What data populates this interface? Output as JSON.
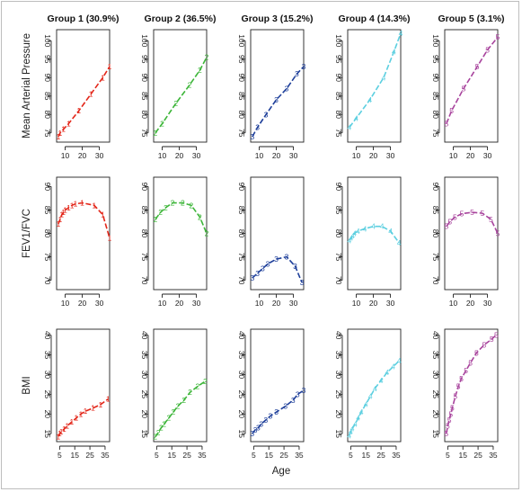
{
  "figure": {
    "xlabel": "Age",
    "groups": [
      {
        "title": "Group 1 (30.9%)",
        "marker": "1",
        "color": "#e32619"
      },
      {
        "title": "Group 2 (36.5%)",
        "marker": "2",
        "color": "#3cb538"
      },
      {
        "title": "Group 3 (15.2%)",
        "marker": "3",
        "color": "#1e3f9a"
      },
      {
        "title": "Group 4 (14.3%)",
        "marker": "4",
        "color": "#5ccfe0"
      },
      {
        "title": "Group 5 (3.1%)",
        "marker": "5",
        "color": "#a8449d"
      }
    ],
    "rows": [
      {
        "label": "Mean Arterial Pressure",
        "yticks": [
          75,
          80,
          85,
          90,
          95,
          100
        ],
        "xticks": [
          10,
          20,
          30
        ]
      },
      {
        "label": "FEV1/FVC",
        "yticks": [
          70,
          75,
          80,
          85,
          90
        ],
        "xticks": [
          10,
          20,
          30
        ]
      },
      {
        "label": "BMI",
        "yticks": [
          15,
          20,
          25,
          30,
          35,
          40
        ],
        "xticks": [
          5,
          15,
          25,
          35
        ]
      }
    ]
  },
  "chart_data": {
    "type": "line",
    "panels": [
      {
        "row": 0,
        "group": 0,
        "ylim": [
          72.5,
          103
        ],
        "xlim": [
          5,
          36
        ],
        "x": [
          6,
          7,
          9,
          12,
          18,
          25,
          32,
          36
        ],
        "y": [
          74,
          75,
          76,
          77.5,
          81,
          85.5,
          90,
          93
        ]
      },
      {
        "row": 0,
        "group": 1,
        "ylim": [
          72.5,
          103
        ],
        "xlim": [
          5,
          36
        ],
        "x": [
          6,
          10,
          18,
          26,
          32,
          36
        ],
        "y": [
          75,
          77.5,
          83,
          88,
          92,
          95.5
        ]
      },
      {
        "row": 0,
        "group": 2,
        "ylim": [
          72.5,
          103
        ],
        "xlim": [
          5,
          36
        ],
        "x": [
          6,
          9,
          14,
          20,
          26,
          32,
          36
        ],
        "y": [
          74,
          76.5,
          80,
          84,
          87,
          91,
          93
        ]
      },
      {
        "row": 0,
        "group": 3,
        "ylim": [
          72.5,
          103
        ],
        "xlim": [
          5,
          36
        ],
        "x": [
          6,
          10,
          18,
          26,
          32,
          36
        ],
        "y": [
          76.5,
          79,
          84,
          90,
          97,
          102
        ]
      },
      {
        "row": 0,
        "group": 4,
        "ylim": [
          72.5,
          103
        ],
        "xlim": [
          5,
          36
        ],
        "x": [
          6,
          9,
          16,
          24,
          30,
          36
        ],
        "y": [
          77.5,
          81,
          87,
          93,
          97.5,
          101
        ]
      },
      {
        "row": 1,
        "group": 0,
        "ylim": [
          68,
          92
        ],
        "xlim": [
          5,
          36
        ],
        "x": [
          6,
          7,
          8,
          9,
          10,
          12,
          14,
          16,
          20,
          27,
          32,
          36
        ],
        "y": [
          82,
          83,
          84,
          84.5,
          85,
          85.5,
          86,
          86.3,
          86.5,
          86,
          84,
          79
        ]
      },
      {
        "row": 1,
        "group": 1,
        "ylim": [
          68,
          92
        ],
        "xlim": [
          5,
          36
        ],
        "x": [
          6,
          9,
          12,
          16,
          22,
          27,
          32,
          36
        ],
        "y": [
          83,
          84.5,
          85.5,
          86.5,
          86.5,
          86,
          83.5,
          80
        ]
      },
      {
        "row": 1,
        "group": 2,
        "ylim": [
          68,
          92
        ],
        "xlim": [
          5,
          36
        ],
        "x": [
          6,
          9,
          12,
          15,
          20,
          26,
          31,
          35
        ],
        "y": [
          70.5,
          71.5,
          72.5,
          73.5,
          74.5,
          75,
          73,
          69.5
        ]
      },
      {
        "row": 1,
        "group": 3,
        "ylim": [
          68,
          92
        ],
        "xlim": [
          5,
          36
        ],
        "x": [
          6,
          7,
          8,
          9,
          11,
          15,
          20,
          25,
          30,
          35
        ],
        "y": [
          78.5,
          79,
          79.5,
          80,
          80.5,
          81,
          81.5,
          81.5,
          80.5,
          78
        ]
      },
      {
        "row": 1,
        "group": 4,
        "ylim": [
          68,
          92
        ],
        "xlim": [
          5,
          36
        ],
        "x": [
          6,
          8,
          11,
          15,
          21,
          27,
          32,
          36
        ],
        "y": [
          81.5,
          82.5,
          83.5,
          84.2,
          84.5,
          84.3,
          83,
          80
        ]
      },
      {
        "row": 2,
        "group": 0,
        "ylim": [
          13,
          41.5
        ],
        "xlim": [
          3,
          38
        ],
        "x": [
          4,
          5,
          6,
          8,
          10,
          13,
          16,
          19,
          22,
          27,
          32,
          37
        ],
        "y": [
          14.3,
          15,
          15.5,
          16.2,
          17,
          18,
          19,
          20,
          20.7,
          21.5,
          22.4,
          23.8
        ]
      },
      {
        "row": 2,
        "group": 1,
        "ylim": [
          13,
          41.5
        ],
        "xlim": [
          3,
          38
        ],
        "x": [
          4,
          6,
          8,
          10,
          13,
          16,
          19,
          23,
          27,
          32,
          37
        ],
        "y": [
          14.2,
          15.3,
          16.5,
          17.5,
          19,
          20.5,
          22,
          23.5,
          25.5,
          27,
          28.3
        ]
      },
      {
        "row": 2,
        "group": 2,
        "ylim": [
          13,
          41.5
        ],
        "xlim": [
          3,
          38
        ],
        "x": [
          4,
          6,
          8,
          10,
          13,
          16,
          20,
          26,
          31,
          34,
          38
        ],
        "y": [
          15,
          16,
          16.5,
          17.5,
          18.5,
          19.5,
          20.5,
          22,
          23.5,
          25,
          26
        ]
      },
      {
        "row": 2,
        "group": 3,
        "ylim": [
          13,
          41.5
        ],
        "xlim": [
          3,
          38
        ],
        "x": [
          4,
          5,
          6,
          8,
          10,
          12,
          15,
          18,
          21,
          25,
          29,
          33,
          37
        ],
        "y": [
          14.5,
          15.5,
          16.3,
          17.5,
          19,
          20.5,
          22.5,
          24.5,
          26.5,
          28.5,
          30.5,
          32,
          33.5
        ]
      },
      {
        "row": 2,
        "group": 4,
        "ylim": [
          13,
          41.5
        ],
        "xlim": [
          3,
          38
        ],
        "x": [
          4,
          5,
          6,
          7,
          8,
          10,
          12,
          14,
          17,
          20,
          24,
          29,
          34,
          37
        ],
        "y": [
          15,
          17,
          18.5,
          20,
          21.5,
          24.5,
          27,
          29,
          31,
          33,
          35.5,
          37.5,
          39,
          40
        ]
      }
    ]
  }
}
